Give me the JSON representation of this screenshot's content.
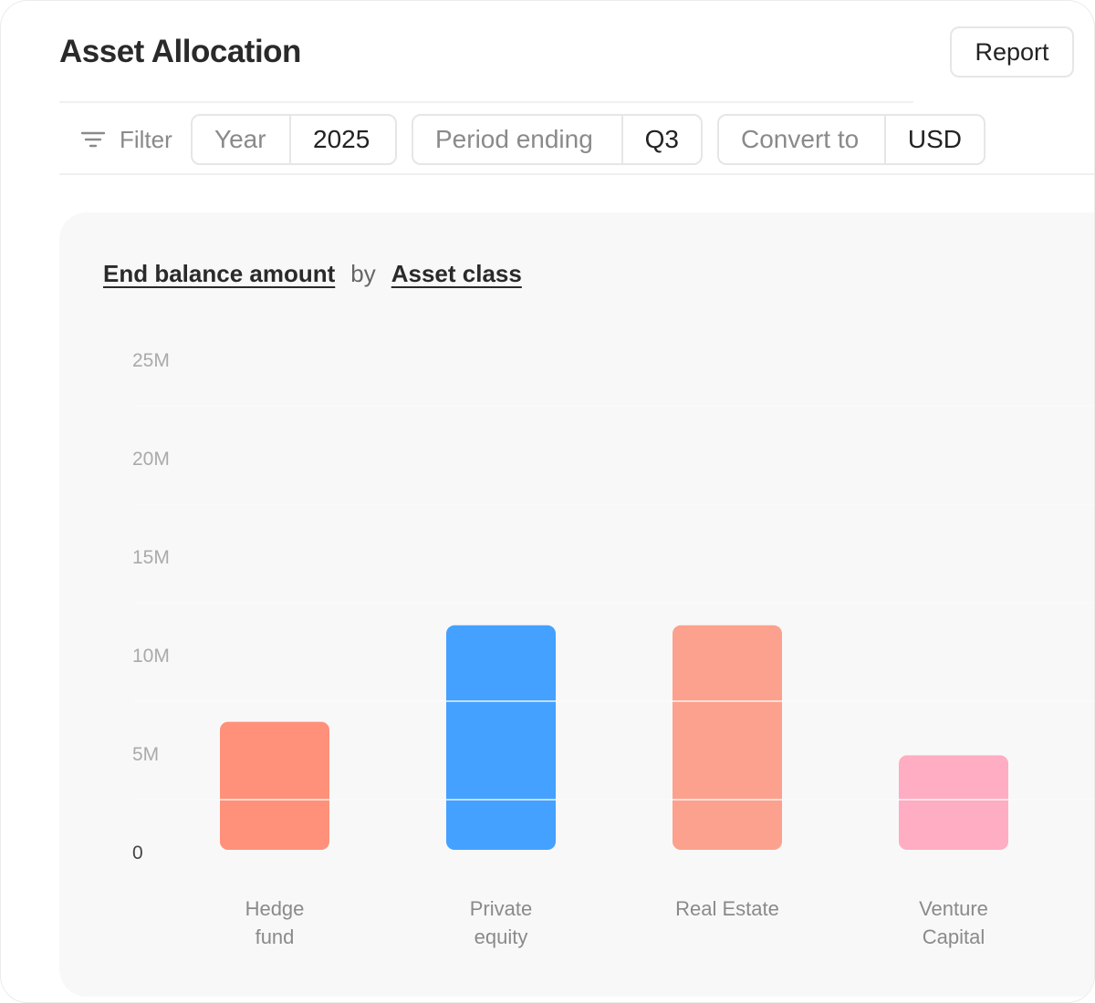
{
  "header": {
    "title": "Asset Allocation",
    "report_label": "Report"
  },
  "filters": {
    "label": "Filter",
    "chips": [
      {
        "key": "Year",
        "value": "2025"
      },
      {
        "key": "Period ending",
        "value": "Q3"
      },
      {
        "key": "Convert to",
        "value": "USD"
      }
    ]
  },
  "colors": {
    "hedge": "#FF917A",
    "private": "#44A1FF",
    "realestate": "#FCA18D",
    "venture": "#FFADC3"
  },
  "chart_data": {
    "type": "bar",
    "title_measure": "End balance amount",
    "title_connector": "by",
    "title_dimension": "Asset class",
    "categories": [
      [
        "Hedge",
        "fund"
      ],
      [
        "Private",
        "equity"
      ],
      [
        "Real Estate"
      ],
      [
        "Venture",
        "Capital"
      ]
    ],
    "values": [
      6.5,
      11.4,
      11.4,
      4.8
    ],
    "value_unit": "M",
    "bar_colors": [
      "#FF917A",
      "#44A1FF",
      "#FCA18D",
      "#FFADC3"
    ],
    "ylim": [
      0,
      25
    ],
    "yticks": [
      {
        "value": 25,
        "label": "25M"
      },
      {
        "value": 20,
        "label": "20M"
      },
      {
        "value": 15,
        "label": "15M"
      },
      {
        "value": 10,
        "label": "10M"
      },
      {
        "value": 5,
        "label": "5M"
      },
      {
        "value": 0,
        "label": "0"
      }
    ],
    "grid": true
  }
}
